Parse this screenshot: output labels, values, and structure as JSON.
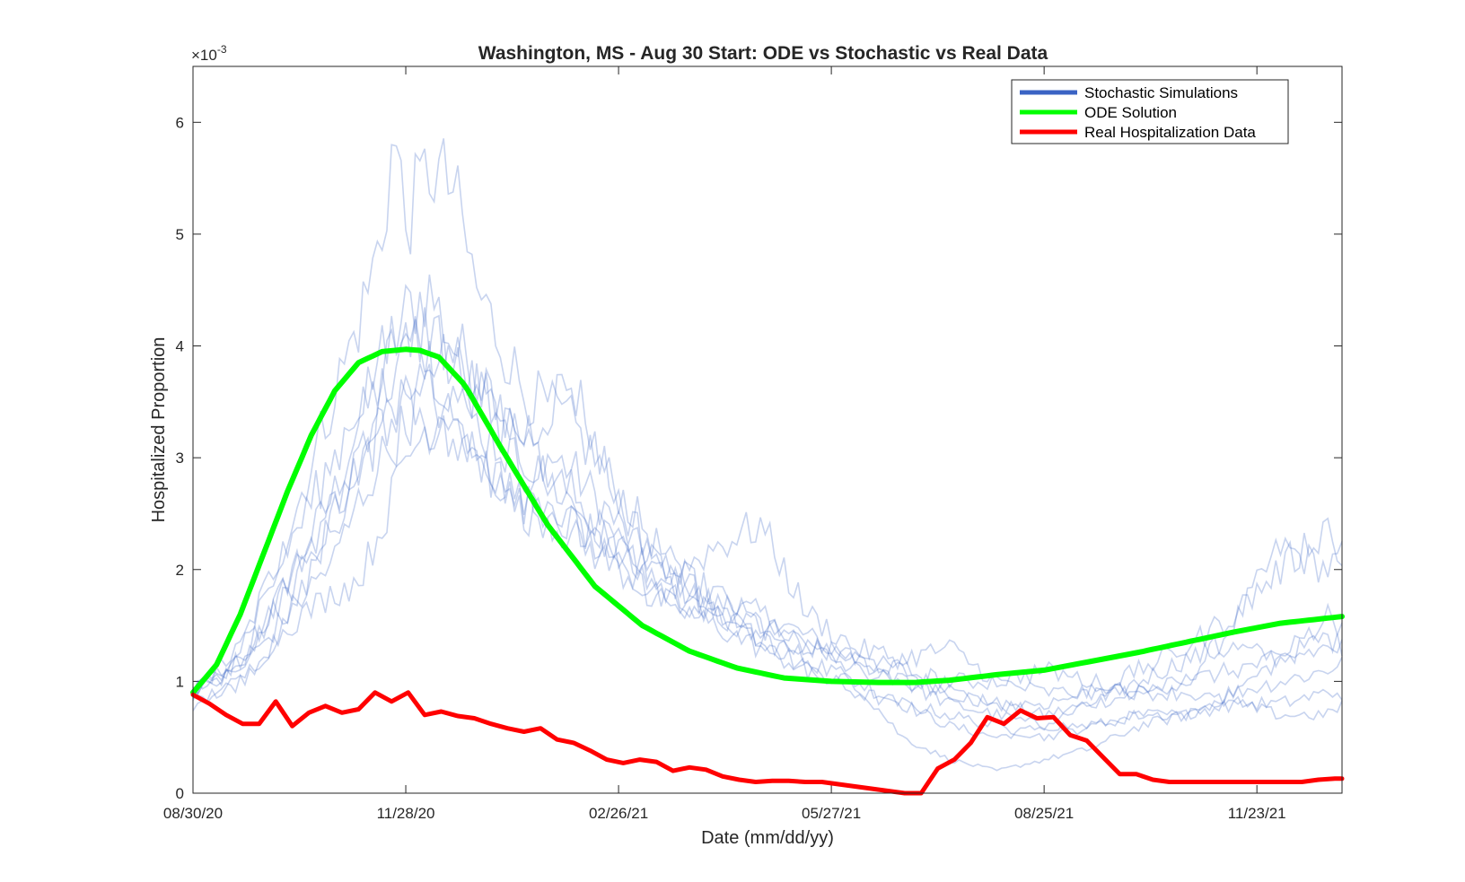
{
  "chart_data": {
    "type": "line",
    "title": "Washington, MS - Aug 30 Start: ODE vs Stochastic vs Real Data",
    "xlabel": "Date (mm/dd/yy)",
    "ylabel": "Hospitalized Proportion",
    "y_exponent_base": "×10",
    "y_exponent_power": "-3",
    "x_start_date": "08/30/20",
    "xlim_days": [
      0,
      486
    ],
    "ylim": [
      0,
      6.5
    ],
    "x_ticks": [
      {
        "day": 0,
        "label": "08/30/20"
      },
      {
        "day": 90,
        "label": "11/28/20"
      },
      {
        "day": 180,
        "label": "02/26/21"
      },
      {
        "day": 270,
        "label": "05/27/21"
      },
      {
        "day": 360,
        "label": "08/25/21"
      },
      {
        "day": 450,
        "label": "11/23/21"
      }
    ],
    "y_ticks": [
      {
        "value": 0,
        "label": "0"
      },
      {
        "value": 1,
        "label": "1"
      },
      {
        "value": 2,
        "label": "2"
      },
      {
        "value": 3,
        "label": "3"
      },
      {
        "value": 4,
        "label": "4"
      },
      {
        "value": 5,
        "label": "5"
      },
      {
        "value": 6,
        "label": "6"
      }
    ],
    "legend_position": "top-right",
    "series": [
      {
        "name": "Stochastic Simulations",
        "color": "#3a63c4",
        "style": "thin-translucent",
        "runs": [
          {
            "x": [
              0,
              20,
              40,
              60,
              70,
              80,
              90,
              100,
              110,
              120,
              140,
              160,
              180,
              200,
              220,
              240,
              260,
              280,
              300,
              320,
              340,
              360,
              380,
              400,
              420,
              440,
              460,
              480,
              486
            ],
            "y": [
              0.9,
              1.1,
              1.9,
              2.7,
              3.3,
              3.7,
              4.3,
              4.5,
              4.0,
              3.8,
              3.1,
              2.9,
              2.4,
              1.9,
              1.7,
              1.6,
              1.4,
              1.2,
              1.1,
              0.9,
              0.8,
              0.7,
              0.8,
              0.9,
              1.0,
              1.5,
              2.2,
              2.0,
              2.1
            ]
          },
          {
            "x": [
              0,
              20,
              40,
              60,
              70,
              80,
              85,
              90,
              100,
              110,
              120,
              140,
              160,
              180,
              200,
              220,
              240,
              260,
              280,
              300,
              320,
              340,
              360,
              380,
              400,
              420,
              440,
              460,
              480,
              486
            ],
            "y": [
              0.9,
              1.3,
              2.3,
              3.6,
              4.2,
              5.0,
              5.9,
              5.1,
              5.6,
              5.4,
              4.5,
              3.6,
              3.3,
              2.7,
              2.1,
              1.6,
              1.4,
              1.1,
              1.0,
              0.8,
              0.6,
              0.5,
              0.6,
              0.8,
              1.0,
              1.2,
              1.3,
              1.2,
              1.4,
              1.3
            ]
          },
          {
            "x": [
              0,
              20,
              40,
              60,
              70,
              80,
              90,
              100,
              110,
              120,
              140,
              160,
              180,
              200,
              220,
              240,
              260,
              280,
              300,
              320,
              340,
              360,
              380,
              400,
              420,
              440,
              460,
              480,
              486
            ],
            "y": [
              0.8,
              1.0,
              1.5,
              2.5,
              3.1,
              3.6,
              3.9,
              4.2,
              3.9,
              3.6,
              3.0,
              2.6,
              2.2,
              2.0,
              1.8,
              1.5,
              1.3,
              1.2,
              1.0,
              0.8,
              0.7,
              0.6,
              0.6,
              0.7,
              0.7,
              0.9,
              1.0,
              1.1,
              1.2
            ]
          },
          {
            "x": [
              0,
              20,
              40,
              60,
              70,
              80,
              90,
              100,
              110,
              120,
              140,
              160,
              180,
              200,
              220,
              240,
              260,
              280,
              300,
              320,
              340,
              360,
              380,
              400,
              420,
              440,
              460,
              480,
              486
            ],
            "y": [
              0.9,
              1.2,
              1.9,
              2.6,
              2.9,
              3.2,
              3.8,
              3.9,
              3.6,
              3.3,
              2.9,
              2.7,
              2.1,
              1.8,
              1.6,
              1.4,
              1.2,
              1.0,
              0.5,
              0.3,
              0.2,
              0.3,
              0.4,
              0.6,
              0.7,
              0.9,
              1.2,
              1.6,
              1.5
            ]
          },
          {
            "x": [
              0,
              20,
              40,
              60,
              70,
              80,
              90,
              100,
              110,
              120,
              140,
              160,
              180,
              200,
              220,
              240,
              260,
              280,
              300,
              320,
              340,
              360,
              380,
              400,
              420,
              440,
              460,
              480,
              486
            ],
            "y": [
              0.9,
              1.1,
              1.6,
              2.1,
              2.6,
              3.0,
              3.3,
              3.6,
              3.3,
              3.0,
              2.6,
              2.3,
              2.0,
              1.7,
              1.5,
              1.3,
              1.1,
              0.9,
              0.8,
              0.7,
              0.6,
              0.5,
              0.6,
              0.7,
              0.7,
              0.8,
              0.8,
              0.9,
              0.9
            ]
          },
          {
            "x": [
              0,
              20,
              40,
              60,
              70,
              80,
              90,
              100,
              110,
              120,
              140,
              160,
              180,
              200,
              220,
              240,
              260,
              280,
              300,
              320,
              340,
              360,
              380,
              400,
              420,
              440,
              460,
              480,
              486
            ],
            "y": [
              0.8,
              1.0,
              1.5,
              1.8,
              1.9,
              2.4,
              3.0,
              3.3,
              3.5,
              3.0,
              2.5,
              2.4,
              2.2,
              1.9,
              2.2,
              2.4,
              1.6,
              1.3,
              1.2,
              1.3,
              1.0,
              0.9,
              0.9,
              0.9,
              1.0,
              1.1,
              1.2,
              1.3,
              1.3
            ]
          },
          {
            "x": [
              0,
              20,
              40,
              60,
              70,
              80,
              90,
              100,
              110,
              120,
              140,
              160,
              180,
              200,
              220,
              240,
              260,
              280,
              300,
              320,
              340,
              360,
              380,
              400,
              420,
              440,
              460,
              480,
              486
            ],
            "y": [
              0.9,
              1.3,
              2.2,
              3.0,
              3.5,
              3.9,
              4.1,
              4.0,
              3.8,
              3.6,
              3.2,
              3.7,
              2.6,
              2.0,
              1.7,
              1.5,
              1.3,
              1.2,
              1.1,
              1.0,
              1.0,
              1.1,
              1.0,
              0.9,
              0.9,
              0.8,
              0.7,
              0.7,
              0.8
            ]
          },
          {
            "x": [
              0,
              20,
              40,
              60,
              70,
              80,
              90,
              100,
              110,
              120,
              140,
              160,
              180,
              200,
              220,
              240,
              260,
              280,
              300,
              320,
              340,
              360,
              380,
              400,
              420,
              440,
              460,
              480,
              486
            ],
            "y": [
              0.9,
              1.2,
              1.8,
              2.4,
              2.8,
              3.3,
              3.6,
              3.3,
              3.1,
              3.0,
              2.7,
              2.4,
              2.0,
              1.7,
              1.6,
              1.4,
              1.3,
              1.1,
              1.0,
              0.9,
              0.8,
              0.8,
              0.9,
              1.1,
              1.3,
              1.6,
              2.0,
              2.4,
              2.0
            ]
          }
        ]
      },
      {
        "name": "ODE Solution",
        "color": "#00ff00",
        "x": [
          0,
          10,
          20,
          30,
          40,
          50,
          60,
          70,
          80,
          90,
          96,
          104,
          115,
          130,
          150,
          170,
          190,
          210,
          230,
          250,
          270,
          290,
          305,
          320,
          340,
          360,
          380,
          400,
          420,
          440,
          460,
          486
        ],
        "y": [
          0.9,
          1.15,
          1.6,
          2.15,
          2.7,
          3.2,
          3.6,
          3.85,
          3.95,
          3.97,
          3.96,
          3.9,
          3.65,
          3.1,
          2.4,
          1.85,
          1.5,
          1.27,
          1.12,
          1.03,
          1.0,
          0.99,
          0.99,
          1.01,
          1.06,
          1.1,
          1.18,
          1.26,
          1.35,
          1.44,
          1.52,
          1.58
        ]
      },
      {
        "name": "Real Hospitalization Data",
        "color": "#ff0000",
        "x": [
          0,
          7,
          14,
          21,
          28,
          35,
          42,
          49,
          56,
          63,
          70,
          77,
          84,
          91,
          98,
          105,
          112,
          119,
          126,
          133,
          140,
          147,
          154,
          161,
          168,
          175,
          182,
          189,
          196,
          203,
          210,
          217,
          224,
          231,
          238,
          245,
          252,
          259,
          266,
          273,
          280,
          287,
          294,
          301,
          308,
          315,
          322,
          329,
          336,
          343,
          350,
          357,
          364,
          371,
          378,
          385,
          392,
          399,
          406,
          413,
          420,
          427,
          434,
          441,
          448,
          455,
          462,
          469,
          476,
          483,
          486
        ],
        "y": [
          0.88,
          0.8,
          0.7,
          0.62,
          0.62,
          0.82,
          0.6,
          0.72,
          0.78,
          0.72,
          0.75,
          0.9,
          0.82,
          0.9,
          0.7,
          0.73,
          0.69,
          0.67,
          0.62,
          0.58,
          0.55,
          0.58,
          0.48,
          0.45,
          0.38,
          0.3,
          0.27,
          0.3,
          0.28,
          0.2,
          0.23,
          0.21,
          0.15,
          0.12,
          0.1,
          0.11,
          0.11,
          0.1,
          0.1,
          0.08,
          0.06,
          0.04,
          0.02,
          0.0,
          0.0,
          0.22,
          0.3,
          0.45,
          0.68,
          0.62,
          0.74,
          0.67,
          0.68,
          0.52,
          0.47,
          0.32,
          0.17,
          0.17,
          0.12,
          0.1,
          0.1,
          0.1,
          0.1,
          0.1,
          0.1,
          0.1,
          0.1,
          0.1,
          0.12,
          0.13,
          0.13
        ]
      }
    ]
  }
}
